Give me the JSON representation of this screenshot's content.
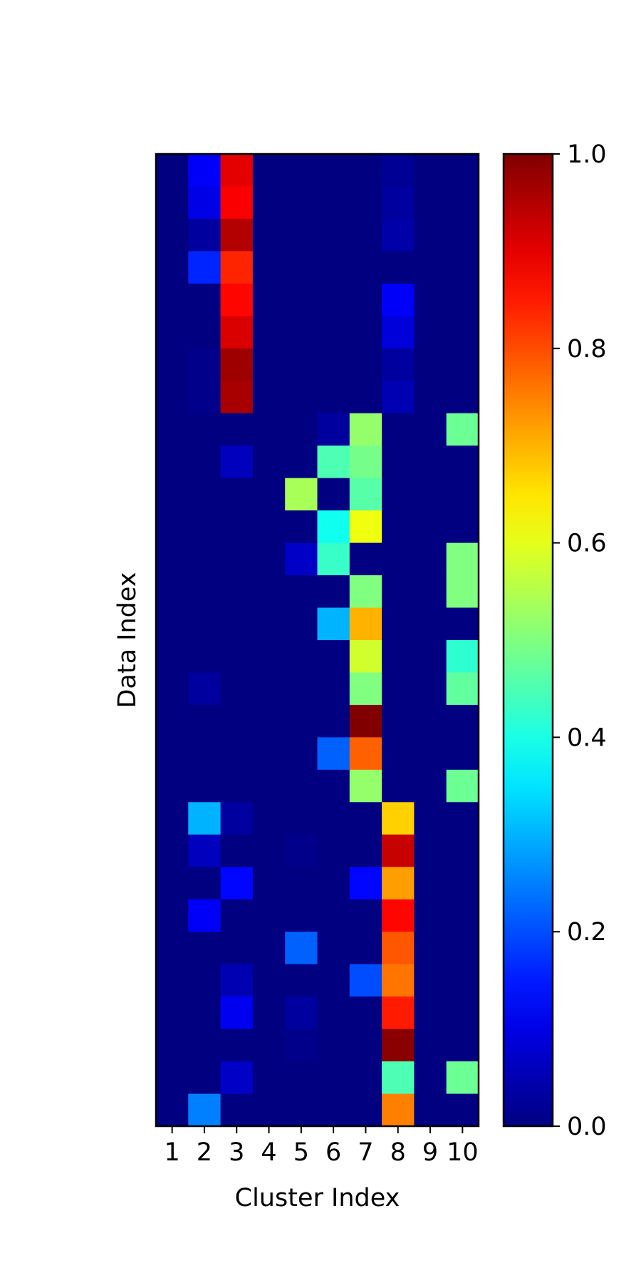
{
  "chart_data": {
    "type": "heatmap",
    "title": "",
    "xlabel": "Cluster Index",
    "ylabel": "Data Index",
    "x_ticks": [
      "1",
      "2",
      "3",
      "4",
      "5",
      "6",
      "7",
      "8",
      "9",
      "10"
    ],
    "y_ticks": [],
    "colormap": "jet",
    "color_range": [
      0,
      1
    ],
    "colorbar_ticks": [
      "0.0",
      "0.2",
      "0.4",
      "0.6",
      "0.8",
      "1.0"
    ],
    "values": [
      [
        0.0,
        0.12,
        0.9,
        0.0,
        0.0,
        0.0,
        0.0,
        0.02,
        0.0,
        0.0
      ],
      [
        0.0,
        0.1,
        0.88,
        0.0,
        0.0,
        0.0,
        0.0,
        0.03,
        0.0,
        0.0
      ],
      [
        0.0,
        0.03,
        0.95,
        0.0,
        0.0,
        0.0,
        0.0,
        0.04,
        0.0,
        0.0
      ],
      [
        0.0,
        0.16,
        0.84,
        0.0,
        0.0,
        0.0,
        0.0,
        0.0,
        0.0,
        0.0
      ],
      [
        0.0,
        0.0,
        0.87,
        0.0,
        0.0,
        0.0,
        0.0,
        0.12,
        0.0,
        0.0
      ],
      [
        0.0,
        0.0,
        0.91,
        0.0,
        0.0,
        0.0,
        0.0,
        0.09,
        0.0,
        0.0
      ],
      [
        0.0,
        0.01,
        0.97,
        0.0,
        0.0,
        0.0,
        0.0,
        0.03,
        0.0,
        0.0
      ],
      [
        0.0,
        0.01,
        0.96,
        0.0,
        0.0,
        0.0,
        0.0,
        0.05,
        0.0,
        0.0
      ],
      [
        0.0,
        0.0,
        0.0,
        0.0,
        0.0,
        0.03,
        0.52,
        0.0,
        0.0,
        0.48
      ],
      [
        0.0,
        0.0,
        0.06,
        0.0,
        0.0,
        0.45,
        0.49,
        0.0,
        0.0,
        0.0
      ],
      [
        0.0,
        0.0,
        0.0,
        0.0,
        0.54,
        0.0,
        0.46,
        0.0,
        0.0,
        0.0
      ],
      [
        0.0,
        0.0,
        0.0,
        0.0,
        0.0,
        0.39,
        0.61,
        0.0,
        0.0,
        0.0
      ],
      [
        0.0,
        0.0,
        0.0,
        0.0,
        0.07,
        0.43,
        0.0,
        0.0,
        0.0,
        0.5
      ],
      [
        0.0,
        0.0,
        0.0,
        0.0,
        0.0,
        0.0,
        0.5,
        0.0,
        0.0,
        0.5
      ],
      [
        0.0,
        0.0,
        0.0,
        0.0,
        0.0,
        0.3,
        0.7,
        0.0,
        0.0,
        0.0
      ],
      [
        0.0,
        0.0,
        0.0,
        0.0,
        0.0,
        0.0,
        0.58,
        0.0,
        0.0,
        0.42
      ],
      [
        0.0,
        0.03,
        0.0,
        0.0,
        0.0,
        0.0,
        0.5,
        0.0,
        0.0,
        0.47
      ],
      [
        0.0,
        0.0,
        0.0,
        0.0,
        0.0,
        0.0,
        1.0,
        0.0,
        0.0,
        0.0
      ],
      [
        0.0,
        0.0,
        0.0,
        0.0,
        0.0,
        0.22,
        0.78,
        0.0,
        0.0,
        0.0
      ],
      [
        0.0,
        0.0,
        0.0,
        0.0,
        0.0,
        0.0,
        0.52,
        0.0,
        0.0,
        0.48
      ],
      [
        0.0,
        0.3,
        0.03,
        0.0,
        0.0,
        0.0,
        0.0,
        0.67,
        0.0,
        0.0
      ],
      [
        0.0,
        0.06,
        0.0,
        0.0,
        0.01,
        0.0,
        0.0,
        0.93,
        0.0,
        0.0
      ],
      [
        0.0,
        0.0,
        0.13,
        0.0,
        0.0,
        0.0,
        0.13,
        0.72,
        0.0,
        0.0
      ],
      [
        0.0,
        0.12,
        0.0,
        0.0,
        0.0,
        0.0,
        0.0,
        0.87,
        0.0,
        0.0
      ],
      [
        0.0,
        0.0,
        0.0,
        0.0,
        0.22,
        0.0,
        0.0,
        0.79,
        0.0,
        0.0
      ],
      [
        0.0,
        0.0,
        0.05,
        0.0,
        0.0,
        0.0,
        0.2,
        0.76,
        0.0,
        0.0
      ],
      [
        0.0,
        0.0,
        0.11,
        0.0,
        0.03,
        0.0,
        0.0,
        0.85,
        0.0,
        0.0
      ],
      [
        0.0,
        0.0,
        0.0,
        0.0,
        0.01,
        0.0,
        0.0,
        0.99,
        0.0,
        0.0
      ],
      [
        0.0,
        0.0,
        0.07,
        0.0,
        0.0,
        0.0,
        0.0,
        0.45,
        0.0,
        0.48
      ],
      [
        0.0,
        0.25,
        0.0,
        0.0,
        0.0,
        0.0,
        0.0,
        0.75,
        0.0,
        0.0
      ]
    ]
  }
}
